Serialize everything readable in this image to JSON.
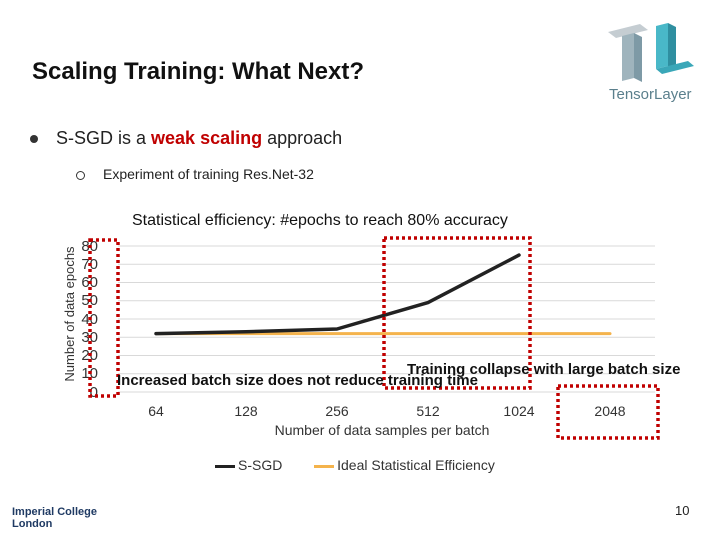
{
  "slide": {
    "title": "Scaling Training: What Next?",
    "bullet1": {
      "prefix": "S-SGD is a ",
      "highlight": "weak scaling",
      "suffix": " approach"
    },
    "bullet2": "Experiment of training Res.Net-32",
    "page_number": "10",
    "logo_text": "TensorLayer",
    "institution_line1": "Imperial College",
    "institution_line2": "London"
  },
  "annotations": {
    "collapse": "Training collapse with large batch size",
    "increase": "Increased batch size does not reduce training time"
  },
  "colors": {
    "s_sgd": "#222222",
    "ideal": "#f4b34c",
    "highlight": "#c00000",
    "box_border": "#c00000",
    "grid": "#d9d9d9"
  },
  "chart_data": {
    "type": "line",
    "title": "Statistical efficiency: #epochs to reach 80% accuracy",
    "xlabel": "Number of data samples per batch",
    "ylabel": "Number of data epochs",
    "categories": [
      "64",
      "128",
      "256",
      "512",
      "1024",
      "2048"
    ],
    "yticks": [
      "80",
      "70",
      "60",
      "50",
      "40",
      "30",
      "20",
      "10",
      "0"
    ],
    "ylim": [
      0,
      80
    ],
    "grid": true,
    "legend_position": "bottom",
    "series": [
      {
        "name": "S-SGD",
        "values": [
          32,
          33,
          34.5,
          49,
          75,
          null
        ]
      },
      {
        "name": "Ideal Statistical Efficiency",
        "values": [
          32,
          32,
          32,
          32,
          32,
          32
        ]
      }
    ]
  }
}
